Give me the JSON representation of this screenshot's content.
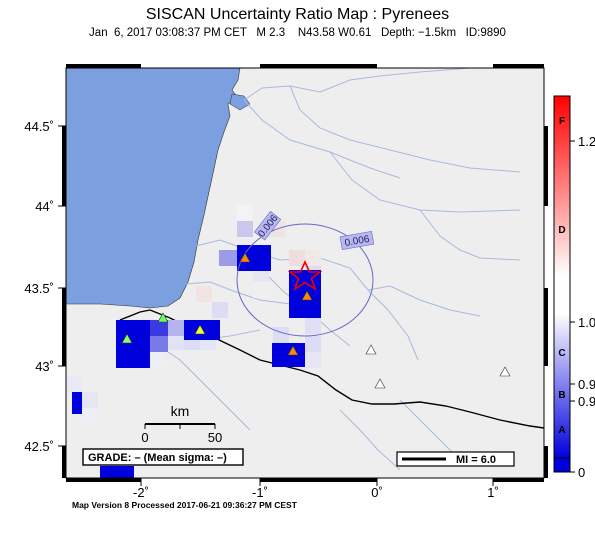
{
  "header": {
    "title": "SISCAN Uncertainty Ratio Map : Pyrenees",
    "subtitle": "Jan  6, 2017 03:08:37 PM CET   M 2.3    N43.58 W0.61   Depth: −1.5km   ID:9890"
  },
  "axes": {
    "x_ticks": [
      "-2˚",
      "-1˚",
      "0˚",
      "1˚"
    ],
    "y_ticks": [
      "44.5˚",
      "44˚",
      "43.5˚",
      "43˚",
      "42.5˚"
    ]
  },
  "colorbar": {
    "value_labels": [
      "1.2",
      "1.0",
      "0.9",
      "0.9",
      "0"
    ],
    "grade_letters": [
      "F",
      "D",
      "C",
      "B",
      "A"
    ],
    "colors": {
      "top": "#ff0000",
      "mid": "#ffffff",
      "bottom": "#0000dd"
    }
  },
  "map": {
    "sea_color": "#7b9fdf",
    "land_color": "#eeeeee",
    "river_color": "#a9b9dd",
    "cell_blue": "#0000dd",
    "epicenter": {
      "lat": 43.58,
      "lon": -0.61,
      "symbol": "red-star"
    },
    "contour_labels": [
      "0.006",
      "0.006"
    ],
    "scale_bar": {
      "unit": "km",
      "tick_left": "0",
      "tick_right": "50"
    },
    "grade_box": "GRADE: – (Mean sigma: –)",
    "mi_box": "MI = 6.0"
  },
  "footer": {
    "text": "Map Version 8 Processed 2017-06-21 09:36:27 PM CEST"
  }
}
